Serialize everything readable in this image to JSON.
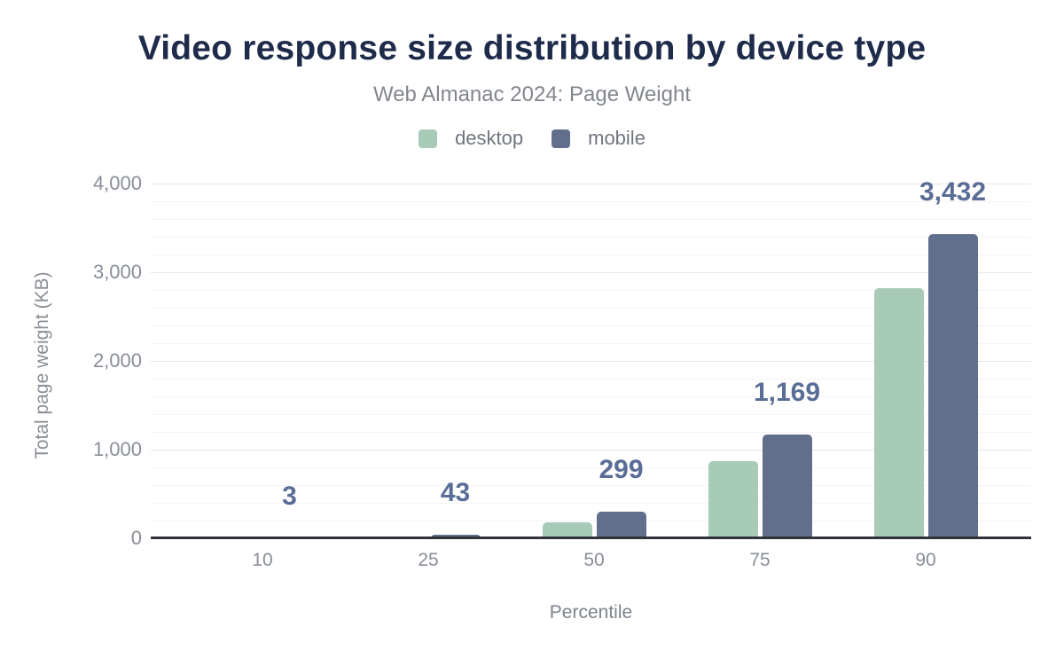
{
  "chart": {
    "title": "Video response size distribution by device type",
    "subtitle": "Web Almanac 2024: Page Weight",
    "x_axis_label": "Percentile",
    "y_axis_label": "Total page weight (KB)"
  },
  "legend": {
    "position": "top",
    "items": [
      {
        "label": "desktop",
        "color": "#a8cbb8"
      },
      {
        "label": "mobile",
        "color": "#626f8c"
      }
    ]
  },
  "chart_data": {
    "type": "bar",
    "title": "Video response size distribution by device type",
    "subtitle": "Web Almanac 2024: Page Weight",
    "xlabel": "Percentile",
    "ylabel": "Total page weight (KB)",
    "categories": [
      "10",
      "25",
      "50",
      "75",
      "90"
    ],
    "series": [
      {
        "name": "desktop",
        "color": "#a8cbb8",
        "values": [
          0,
          25,
          185,
          875,
          2825
        ],
        "values_estimated_from_bars": true
      },
      {
        "name": "mobile",
        "color": "#626f8c",
        "values": [
          3,
          43,
          299,
          1169,
          3432
        ]
      }
    ],
    "value_labels": {
      "series": "mobile",
      "labels": [
        "3",
        "43",
        "299",
        "1,169",
        "3,432"
      ],
      "color": "#5a6d96"
    },
    "ylim": [
      0,
      4000
    ],
    "yticks": [
      {
        "value": 0,
        "label": "0"
      },
      {
        "value": 1000,
        "label": "1,000"
      },
      {
        "value": 2000,
        "label": "2,000"
      },
      {
        "value": 3000,
        "label": "3,000"
      },
      {
        "value": 4000,
        "label": "4,000"
      }
    ],
    "minor_grid_step": 200,
    "grid": true,
    "legend_position": "top",
    "colors": {
      "title": "#1e2b4a",
      "subtitle": "#82868d",
      "tick_labels": "#898e97",
      "axis_line": "#303339",
      "major_grid": "#e4e5e7",
      "minor_grid": "#f4f4f5"
    }
  }
}
